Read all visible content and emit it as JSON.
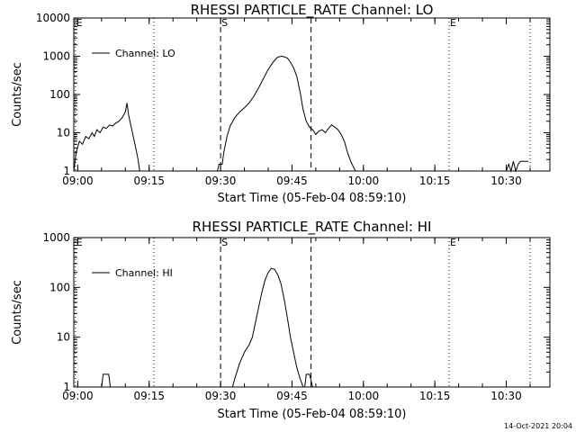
{
  "chart_data": [
    {
      "type": "line",
      "title": "RHESSI PARTICLE_RATE Channel: LO",
      "xlabel": "Start Time (05-Feb-04 08:59:10)",
      "ylabel": "Counts/sec",
      "yscale": "log",
      "ylim": [
        1,
        10000
      ],
      "xlim": [
        "08:59:10",
        "10:39:10"
      ],
      "x_ticks": [
        "09:00",
        "09:15",
        "09:30",
        "09:45",
        "10:00",
        "10:15",
        "10:30"
      ],
      "y_ticks": [
        "1",
        "10",
        "100",
        "1000",
        "10000"
      ],
      "legend": {
        "label": "Channel: LO",
        "placement": "top-left"
      },
      "markers": [
        {
          "label": "E",
          "time": "08:59:30",
          "style": "dotted"
        },
        {
          "label": "",
          "time": "09:16",
          "style": "dotted"
        },
        {
          "label": "S",
          "time": "09:30",
          "style": "dashed"
        },
        {
          "label": "",
          "time": "09:49",
          "style": "dashed"
        },
        {
          "label": "E",
          "time": "10:18",
          "style": "dotted"
        },
        {
          "label": "",
          "time": "10:35",
          "style": "dotted"
        }
      ],
      "series": [
        {
          "name": "Channel: LO",
          "x": [
            "08:59:10",
            "08:59:40",
            "09:00:20",
            "09:01:00",
            "09:01:40",
            "09:02:20",
            "09:03:00",
            "09:03:30",
            "09:04:00",
            "09:04:40",
            "09:05:20",
            "09:06:00",
            "09:06:40",
            "09:07:20",
            "09:08:00",
            "09:08:40",
            "09:09:20",
            "09:10:00",
            "09:10:20",
            "09:10:40",
            "09:11:10",
            "09:11:40",
            "09:12:10",
            "09:12:40",
            "09:13:00",
            "09:29:20",
            "09:29:40",
            "09:30:20",
            "09:30:40",
            "09:31:20",
            "09:32:00",
            "09:33:00",
            "09:34:00",
            "09:35:00",
            "09:36:00",
            "09:37:00",
            "09:38:00",
            "09:39:00",
            "09:40:00",
            "09:41:00",
            "09:42:00",
            "09:43:00",
            "09:44:00",
            "09:44:40",
            "09:45:20",
            "09:46:00",
            "09:46:40",
            "09:47:20",
            "09:48:00",
            "09:48:40",
            "09:49:20",
            "09:50:00",
            "09:50:40",
            "09:51:20",
            "09:52:00",
            "09:52:40",
            "09:53:20",
            "09:54:00",
            "09:54:40",
            "09:55:20",
            "09:56:00",
            "09:56:40",
            "09:57:20",
            "09:58:00",
            "09:58:20",
            "10:30:00",
            "10:30:30",
            "10:31:00",
            "10:31:30",
            "10:32:00",
            "10:32:30",
            "10:33:00",
            "10:34:00",
            "10:34:40"
          ],
          "y": [
            1,
            3,
            6,
            5,
            8,
            7,
            10,
            8,
            12,
            10,
            14,
            13,
            16,
            15,
            18,
            20,
            25,
            35,
            60,
            30,
            15,
            8,
            4,
            2,
            1,
            1,
            1.5,
            1.5,
            3,
            8,
            15,
            25,
            35,
            45,
            60,
            90,
            150,
            260,
            450,
            700,
            950,
            1000,
            900,
            700,
            500,
            300,
            120,
            40,
            20,
            14,
            12,
            9,
            11,
            12,
            10,
            13,
            16,
            14,
            12,
            9,
            6,
            3,
            1.8,
            1.2,
            1,
            1,
            1.5,
            1,
            1.8,
            1,
            1.5,
            1.8,
            1.8,
            1.8
          ]
        }
      ]
    },
    {
      "type": "line",
      "title": "RHESSI PARTICLE_RATE Channel: HI",
      "xlabel": "Start Time (05-Feb-04 08:59:10)",
      "ylabel": "Counts/sec",
      "yscale": "log",
      "ylim": [
        1,
        1000
      ],
      "xlim": [
        "08:59:10",
        "10:39:10"
      ],
      "x_ticks": [
        "09:00",
        "09:15",
        "09:30",
        "09:45",
        "10:00",
        "10:15",
        "10:30"
      ],
      "y_ticks": [
        "1",
        "10",
        "100",
        "1000"
      ],
      "legend": {
        "label": "Channel: HI",
        "placement": "top-left"
      },
      "markers": [
        {
          "label": "E",
          "time": "08:59:30",
          "style": "dotted"
        },
        {
          "label": "",
          "time": "09:16",
          "style": "dotted"
        },
        {
          "label": "S",
          "time": "09:30",
          "style": "dashed"
        },
        {
          "label": "",
          "time": "09:49",
          "style": "dashed"
        },
        {
          "label": "E",
          "time": "10:18",
          "style": "dotted"
        },
        {
          "label": "",
          "time": "10:35",
          "style": "dotted"
        }
      ],
      "series": [
        {
          "name": "Channel: HI",
          "x": [
            "09:05:00",
            "09:05:20",
            "09:06:30",
            "09:06:50",
            "09:32:30",
            "09:33:00",
            "09:34:00",
            "09:35:00",
            "09:36:00",
            "09:36:40",
            "09:37:20",
            "09:38:00",
            "09:38:40",
            "09:39:20",
            "09:40:00",
            "09:40:40",
            "09:41:20",
            "09:42:00",
            "09:42:40",
            "09:43:20",
            "09:44:00",
            "09:44:40",
            "09:45:20",
            "09:46:00",
            "09:46:40",
            "09:47:20",
            "09:47:40",
            "09:48:00",
            "09:48:40",
            "09:49:20",
            "09:49:40"
          ],
          "y": [
            1,
            1.8,
            1.8,
            1,
            1,
            1.5,
            3,
            5,
            7,
            10,
            20,
            40,
            80,
            140,
            200,
            240,
            230,
            180,
            120,
            60,
            25,
            10,
            5,
            2.5,
            1.5,
            1,
            1,
            1.8,
            1.8,
            1,
            1
          ]
        }
      ]
    }
  ],
  "footer": {
    "timestamp": "14-Oct-2021 20:04"
  }
}
